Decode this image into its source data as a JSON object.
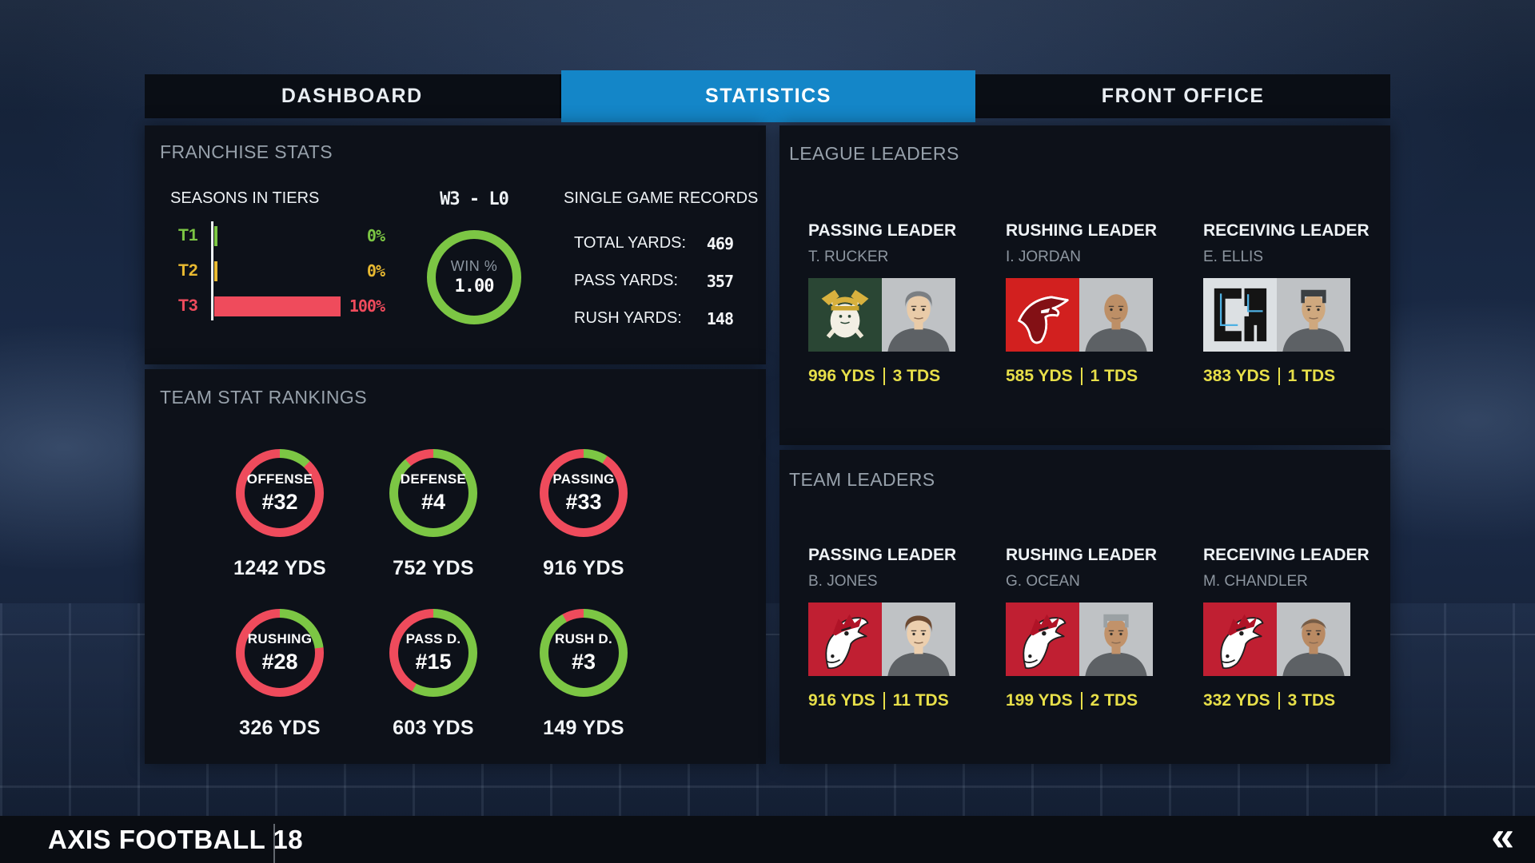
{
  "colors": {
    "accent_blue": "#1486c8",
    "green": "#7cc644",
    "gold": "#e8b931",
    "red": "#ef4b5c",
    "stat_yellow": "#e7df49"
  },
  "tabs": [
    {
      "label": "DASHBOARD",
      "active": false
    },
    {
      "label": "STATISTICS",
      "active": true
    },
    {
      "label": "FRONT OFFICE",
      "active": false
    }
  ],
  "franchise": {
    "title": "FRANCHISE STATS",
    "tiers": {
      "heading": "SEASONS IN TIERS",
      "rows": [
        {
          "label": "T1",
          "pct_text": "0%",
          "pct": 0,
          "color": "#7cc644"
        },
        {
          "label": "T2",
          "pct_text": "0%",
          "pct": 0,
          "color": "#e8b931"
        },
        {
          "label": "T3",
          "pct_text": "100%",
          "pct": 100,
          "color": "#ef4b5c"
        }
      ]
    },
    "record": "W3 - L0",
    "win": {
      "label": "WIN %",
      "value": "1.00",
      "pct": 100
    },
    "records": {
      "heading": "SINGLE GAME RECORDS",
      "rows": [
        {
          "label": "TOTAL YARDS:",
          "value": "469"
        },
        {
          "label": "PASS YARDS:",
          "value": "357"
        },
        {
          "label": "RUSH YARDS:",
          "value": "148"
        }
      ]
    }
  },
  "rankings": {
    "title": "TEAM STAT RANKINGS",
    "items": [
      {
        "label": "OFFENSE",
        "rank": "#32",
        "yds": "1242 YDS",
        "green_pct": 12
      },
      {
        "label": "DEFENSE",
        "rank": "#4",
        "yds": "752 YDS",
        "green_pct": 89
      },
      {
        "label": "PASSING",
        "rank": "#33",
        "yds": "916 YDS",
        "green_pct": 9
      },
      {
        "label": "RUSHING",
        "rank": "#28",
        "yds": "326 YDS",
        "green_pct": 23
      },
      {
        "label": "PASS D.",
        "rank": "#15",
        "yds": "603 YDS",
        "green_pct": 58
      },
      {
        "label": "RUSH D.",
        "rank": "#3",
        "yds": "149 YDS",
        "green_pct": 92
      }
    ]
  },
  "league_leaders": {
    "title": "LEAGUE LEADERS",
    "cards": [
      {
        "role": "PASSING LEADER",
        "name": "T. RUCKER",
        "yds": "996 YDS",
        "tds": "3 TDS",
        "logo": "lumberjacks-logo",
        "portrait": {
          "skin": "#e9cba8",
          "hair": "#7b7f83",
          "style": "cap"
        }
      },
      {
        "role": "RUSHING LEADER",
        "name": "I. JORDAN",
        "yds": "585 YDS",
        "tds": "1 TDS",
        "logo": "bandits-logo",
        "portrait": {
          "skin": "#bd8f66",
          "hair": "#bd8f66",
          "style": "bald"
        }
      },
      {
        "role": "RECEIVING LEADER",
        "name": "E. ELLIS",
        "yds": "383 YDS",
        "tds": "1 TDS",
        "logo": "ca-logo",
        "portrait": {
          "skin": "#cfa87e",
          "hair": "#3c4043",
          "style": "flat"
        }
      }
    ]
  },
  "team_leaders": {
    "title": "TEAM LEADERS",
    "cards": [
      {
        "role": "PASSING LEADER",
        "name": "B. JONES",
        "yds": "916 YDS",
        "tds": "11 TDS",
        "logo": "horses-logo",
        "portrait": {
          "skin": "#eccfae",
          "hair": "#6d4a31",
          "style": "cap"
        }
      },
      {
        "role": "RUSHING LEADER",
        "name": "G. OCEAN",
        "yds": "199 YDS",
        "tds": "2 TDS",
        "logo": "horses-logo",
        "portrait": {
          "skin": "#c1926a",
          "hair": "#9ba1a4",
          "style": "flat"
        }
      },
      {
        "role": "RECEIVING LEADER",
        "name": "M. CHANDLER",
        "yds": "332 YDS",
        "tds": "3 TDS",
        "logo": "horses-logo",
        "portrait": {
          "skin": "#b98a63",
          "hair": "#6f5742",
          "style": "buzz"
        }
      }
    ]
  },
  "footer": {
    "title": "AXIS FOOTBALL 18",
    "collapse_icon": "«"
  }
}
